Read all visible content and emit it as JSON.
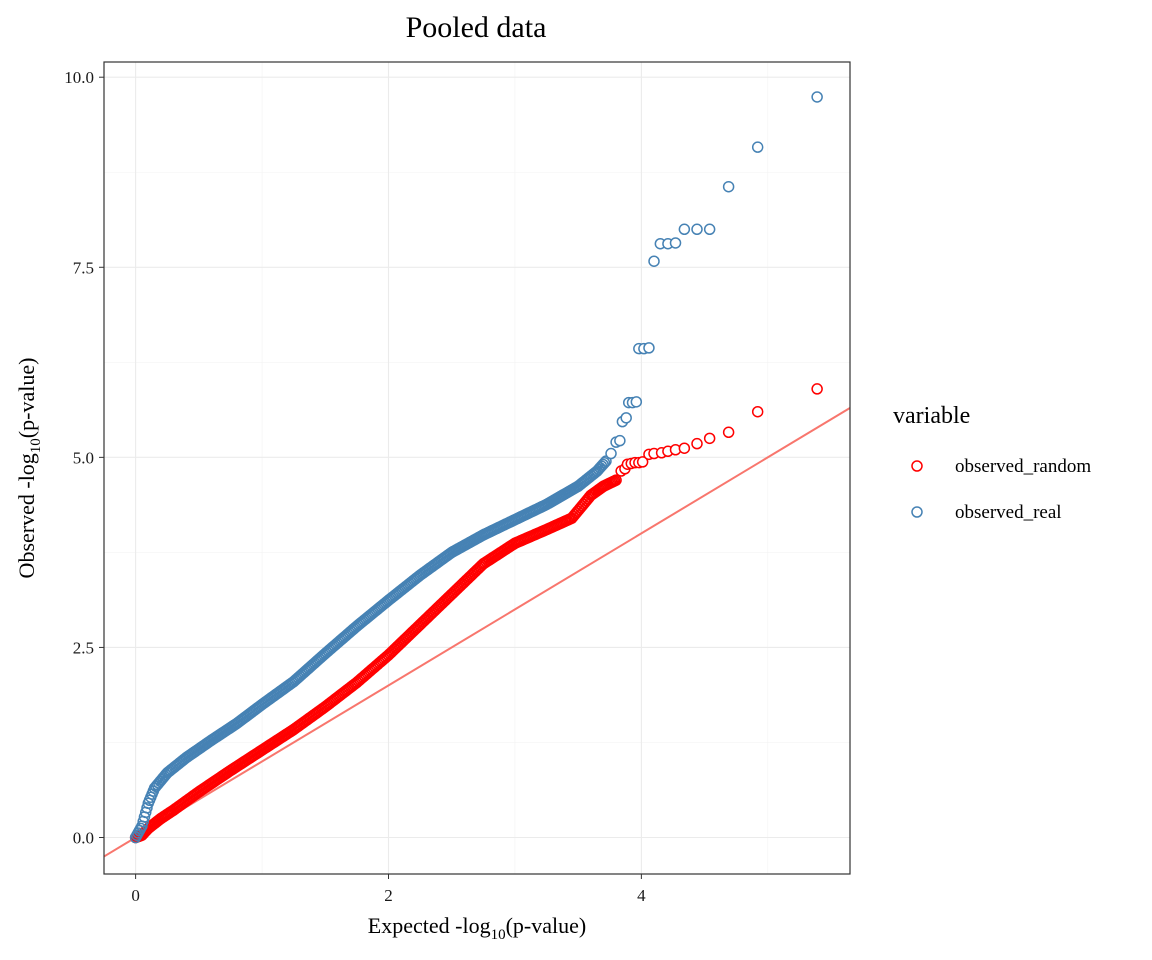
{
  "chart_data": {
    "type": "scatter",
    "title": "Pooled data",
    "xlabel": {
      "prefix": "Expected -log",
      "sub": "10",
      "suffix": "(p-value)"
    },
    "ylabel": {
      "prefix": "Observed -log",
      "sub": "10",
      "suffix": "(p-value)"
    },
    "xlim": [
      -0.25,
      5.65
    ],
    "ylim": [
      -0.48,
      10.2
    ],
    "x_ticks": [
      0,
      2,
      4
    ],
    "x_tick_labels": [
      "0",
      "2",
      "4"
    ],
    "y_ticks": [
      0,
      2.5,
      5,
      7.5,
      10
    ],
    "y_tick_labels": [
      "0.0",
      "2.5",
      "5.0",
      "7.5",
      "10.0"
    ],
    "grid": true,
    "reference_line": {
      "slope": 1,
      "intercept": 0,
      "color": "#F8766D"
    },
    "legend": {
      "title": "variable",
      "position": "right",
      "entries": [
        {
          "label": "observed_random",
          "color": "#FF0000"
        },
        {
          "label": "observed_real",
          "color": "#4682B4"
        }
      ]
    },
    "series": [
      {
        "name": "observed_random",
        "color": "#FF0000",
        "dense_curve": [
          [
            0.0,
            0.0
          ],
          [
            0.05,
            0.03
          ],
          [
            0.1,
            0.12
          ],
          [
            0.2,
            0.25
          ],
          [
            0.3,
            0.36
          ],
          [
            0.5,
            0.6
          ],
          [
            0.75,
            0.88
          ],
          [
            1.0,
            1.15
          ],
          [
            1.25,
            1.42
          ],
          [
            1.5,
            1.72
          ],
          [
            1.75,
            2.04
          ],
          [
            2.0,
            2.4
          ],
          [
            2.25,
            2.8
          ],
          [
            2.5,
            3.2
          ],
          [
            2.75,
            3.6
          ],
          [
            3.0,
            3.87
          ],
          [
            3.25,
            4.05
          ],
          [
            3.45,
            4.2
          ],
          [
            3.6,
            4.5
          ],
          [
            3.7,
            4.62
          ],
          [
            3.8,
            4.7
          ]
        ],
        "tail_points": [
          [
            3.84,
            4.82
          ],
          [
            3.87,
            4.85
          ],
          [
            3.89,
            4.91
          ],
          [
            3.92,
            4.92
          ],
          [
            3.95,
            4.93
          ],
          [
            3.98,
            4.93
          ],
          [
            4.01,
            4.94
          ],
          [
            4.06,
            5.04
          ],
          [
            4.1,
            5.05
          ],
          [
            4.16,
            5.06
          ],
          [
            4.21,
            5.08
          ],
          [
            4.27,
            5.1
          ],
          [
            4.34,
            5.12
          ],
          [
            4.44,
            5.18
          ],
          [
            4.54,
            5.25
          ],
          [
            4.69,
            5.33
          ],
          [
            4.92,
            5.6
          ],
          [
            5.39,
            5.9
          ]
        ]
      },
      {
        "name": "observed_real",
        "color": "#4682B4",
        "dense_curve": [
          [
            0.0,
            0.0
          ],
          [
            0.05,
            0.15
          ],
          [
            0.1,
            0.45
          ],
          [
            0.15,
            0.65
          ],
          [
            0.25,
            0.85
          ],
          [
            0.4,
            1.05
          ],
          [
            0.6,
            1.28
          ],
          [
            0.8,
            1.5
          ],
          [
            1.0,
            1.75
          ],
          [
            1.25,
            2.05
          ],
          [
            1.5,
            2.42
          ],
          [
            1.75,
            2.78
          ],
          [
            2.0,
            3.12
          ],
          [
            2.25,
            3.45
          ],
          [
            2.5,
            3.75
          ],
          [
            2.75,
            3.98
          ],
          [
            3.0,
            4.18
          ],
          [
            3.25,
            4.38
          ],
          [
            3.5,
            4.62
          ],
          [
            3.65,
            4.82
          ],
          [
            3.72,
            4.95
          ]
        ],
        "tail_points": [
          [
            3.76,
            5.05
          ],
          [
            3.8,
            5.2
          ],
          [
            3.83,
            5.22
          ],
          [
            3.85,
            5.47
          ],
          [
            3.88,
            5.52
          ],
          [
            3.9,
            5.72
          ],
          [
            3.93,
            5.72
          ],
          [
            3.96,
            5.73
          ],
          [
            3.98,
            6.43
          ],
          [
            4.02,
            6.43
          ],
          [
            4.06,
            6.44
          ],
          [
            4.1,
            7.58
          ],
          [
            4.15,
            7.81
          ],
          [
            4.21,
            7.81
          ],
          [
            4.27,
            7.82
          ],
          [
            4.34,
            8.0
          ],
          [
            4.44,
            8.0
          ],
          [
            4.54,
            8.0
          ],
          [
            4.69,
            8.56
          ],
          [
            4.92,
            9.08
          ],
          [
            5.39,
            9.74
          ]
        ]
      }
    ]
  }
}
